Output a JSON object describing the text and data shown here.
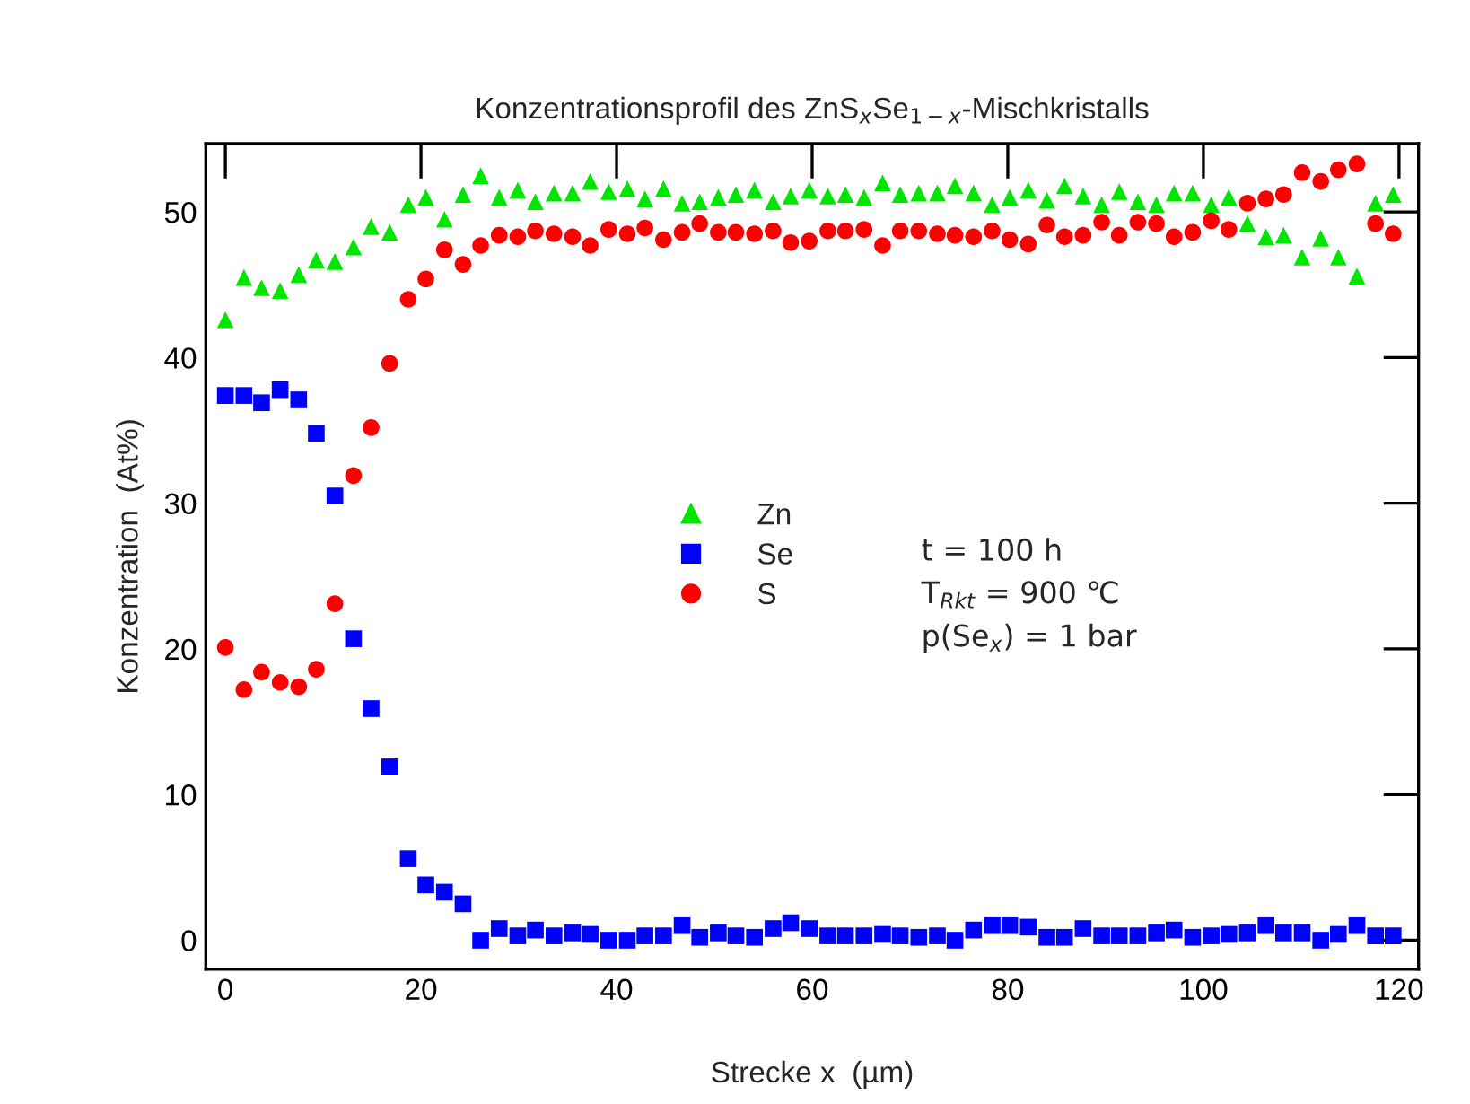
{
  "chart_data": {
    "type": "scatter",
    "title": "Konzentrationsprofil des ZnS$_{x}$Se$_{1−x}$-Mischkristalls",
    "xlabel": "Strecke x  (µm)",
    "ylabel": "Konzentration  (At%)",
    "x": [
      0,
      1.9,
      3.7,
      5.6,
      7.5,
      9.3,
      11.2,
      13.1,
      14.9,
      16.8,
      18.7,
      20.5,
      22.4,
      24.3,
      26.1,
      28.0,
      29.9,
      31.7,
      33.6,
      35.5,
      37.3,
      39.2,
      41.1,
      42.9,
      44.8,
      46.7,
      48.5,
      50.4,
      52.2,
      54.1,
      56.0,
      57.8,
      59.7,
      61.6,
      63.4,
      65.3,
      67.2,
      69.0,
      70.9,
      72.8,
      74.6,
      76.5,
      78.4,
      80.2,
      82.1,
      84.0,
      85.8,
      87.7,
      89.6,
      91.4,
      93.3,
      95.2,
      97.0,
      98.9,
      100.8,
      102.6,
      104.5,
      106.4,
      108.2,
      110.1,
      112.0,
      113.8,
      115.7,
      117.6,
      119.4
    ],
    "series": [
      {
        "name": "Zn",
        "color": "#00e600",
        "marker": "triangle",
        "values": [
          42.6,
          45.5,
          44.8,
          44.6,
          45.7,
          46.7,
          46.6,
          47.6,
          49.0,
          48.6,
          50.5,
          51.0,
          49.5,
          51.2,
          52.5,
          51.0,
          51.5,
          50.7,
          51.3,
          51.3,
          52.1,
          51.4,
          51.6,
          50.9,
          51.6,
          50.6,
          50.7,
          51.0,
          51.2,
          51.5,
          50.7,
          51.1,
          51.5,
          51.1,
          51.2,
          51.0,
          52.0,
          51.2,
          51.3,
          51.3,
          51.8,
          51.3,
          50.5,
          51.0,
          51.5,
          50.8,
          51.8,
          51.1,
          50.5,
          51.4,
          50.7,
          50.5,
          51.3,
          51.3,
          50.5,
          51.0,
          49.2,
          48.3,
          48.4,
          46.9,
          48.2,
          46.9,
          45.6,
          50.6,
          51.2
        ]
      },
      {
        "name": "Se",
        "color": "#0000ff",
        "marker": "square",
        "values": [
          37.4,
          37.4,
          36.9,
          37.8,
          37.1,
          34.8,
          30.5,
          20.7,
          15.9,
          11.9,
          5.6,
          3.8,
          3.3,
          2.5,
          0.0,
          0.8,
          0.3,
          0.7,
          0.3,
          0.5,
          0.4,
          0.0,
          0.0,
          0.3,
          0.3,
          1.0,
          0.2,
          0.5,
          0.3,
          0.2,
          0.8,
          1.2,
          0.8,
          0.3,
          0.3,
          0.3,
          0.4,
          0.3,
          0.2,
          0.3,
          0.0,
          0.7,
          1.0,
          1.0,
          0.9,
          0.2,
          0.2,
          0.8,
          0.3,
          0.3,
          0.3,
          0.5,
          0.7,
          0.2,
          0.3,
          0.4,
          0.5,
          1.0,
          0.5,
          0.5,
          0.0,
          0.4,
          1.0,
          0.3,
          0.3
        ]
      },
      {
        "name": "S",
        "color": "#ff0000",
        "marker": "circle",
        "values": [
          20.1,
          17.2,
          18.4,
          17.7,
          17.4,
          18.6,
          23.1,
          31.9,
          35.2,
          39.6,
          44.0,
          45.4,
          47.4,
          46.4,
          47.7,
          48.4,
          48.3,
          48.7,
          48.5,
          48.3,
          47.7,
          48.8,
          48.5,
          48.9,
          48.1,
          48.6,
          49.2,
          48.6,
          48.6,
          48.5,
          48.7,
          47.9,
          48.0,
          48.7,
          48.7,
          48.8,
          47.7,
          48.7,
          48.7,
          48.5,
          48.4,
          48.3,
          48.7,
          48.1,
          47.8,
          49.1,
          48.3,
          48.4,
          49.3,
          48.4,
          49.3,
          49.2,
          48.3,
          48.6,
          49.4,
          48.8,
          50.6,
          50.9,
          51.2,
          52.7,
          52.1,
          52.9,
          53.3,
          49.2,
          48.5
        ]
      }
    ],
    "annotations": [
      "t = 100 h",
      "T$_{Rkt}$ = 900 ℃",
      "p(Se$_{x}$) = 1 bar"
    ],
    "xlim": [
      -2,
      122
    ],
    "xticks": [
      0,
      20,
      40,
      60,
      80,
      100,
      120
    ],
    "ylim": [
      -2,
      54.7
    ],
    "yticks": [
      0,
      10,
      20,
      30,
      40,
      50
    ],
    "grid": false,
    "legend": "center"
  }
}
